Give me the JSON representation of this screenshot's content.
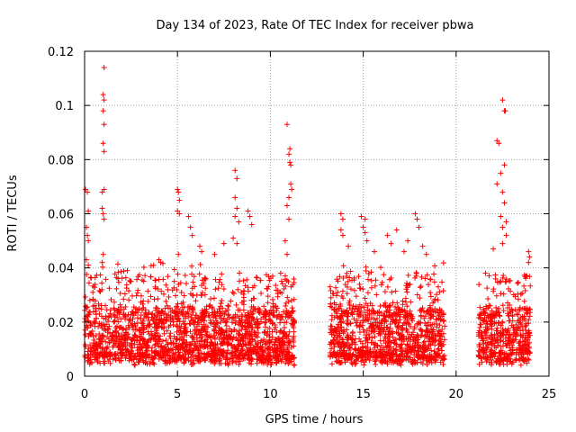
{
  "chart_data": {
    "type": "scatter",
    "title": "Day 134 of 2023, Rate Of TEC Index for receiver pbwa",
    "xlabel": "GPS time / hours",
    "ylabel": "ROTI / TECUs",
    "xlim": [
      0,
      25
    ],
    "ylim": [
      0,
      0.12
    ],
    "x_ticks": [
      0,
      5,
      10,
      15,
      20,
      25
    ],
    "x_tick_labels": [
      "0",
      "5",
      "10",
      "15",
      "20",
      "25"
    ],
    "y_ticks": [
      0,
      0.02,
      0.04,
      0.06,
      0.08,
      0.1,
      0.12
    ],
    "y_tick_labels": [
      "0",
      "0.02",
      "0.04",
      "0.06",
      "0.08",
      "0.1",
      "0.12"
    ],
    "grid": true,
    "marker": "+",
    "color": "#ff0000",
    "series": [
      {
        "data_segments": [
          {
            "x_start": 0.0,
            "x_end": 11.3,
            "baseline_range": [
              0.004,
              0.03
            ]
          },
          {
            "x_start": 13.2,
            "x_end": 19.4,
            "baseline_range": [
              0.004,
              0.03
            ]
          },
          {
            "x_start": 21.2,
            "x_end": 24.0,
            "baseline_range": [
              0.004,
              0.03
            ]
          }
        ],
        "notable_points": [
          {
            "x": 0.05,
            "y": 0.069
          },
          {
            "x": 0.15,
            "y": 0.068
          },
          {
            "x": 0.2,
            "y": 0.061
          },
          {
            "x": 0.1,
            "y": 0.055
          },
          {
            "x": 0.15,
            "y": 0.052
          },
          {
            "x": 0.2,
            "y": 0.05
          },
          {
            "x": 0.1,
            "y": 0.043
          },
          {
            "x": 0.2,
            "y": 0.041
          },
          {
            "x": 1.05,
            "y": 0.114
          },
          {
            "x": 1.0,
            "y": 0.104
          },
          {
            "x": 1.05,
            "y": 0.102
          },
          {
            "x": 1.0,
            "y": 0.098
          },
          {
            "x": 1.05,
            "y": 0.093
          },
          {
            "x": 1.0,
            "y": 0.086
          },
          {
            "x": 1.05,
            "y": 0.083
          },
          {
            "x": 0.95,
            "y": 0.068
          },
          {
            "x": 1.05,
            "y": 0.069
          },
          {
            "x": 0.95,
            "y": 0.062
          },
          {
            "x": 1.0,
            "y": 0.06
          },
          {
            "x": 1.05,
            "y": 0.058
          },
          {
            "x": 1.0,
            "y": 0.045
          },
          {
            "x": 0.95,
            "y": 0.042
          },
          {
            "x": 2.3,
            "y": 0.039
          },
          {
            "x": 2.5,
            "y": 0.035
          },
          {
            "x": 4.0,
            "y": 0.043
          },
          {
            "x": 4.1,
            "y": 0.042
          },
          {
            "x": 5.0,
            "y": 0.069
          },
          {
            "x": 5.05,
            "y": 0.068
          },
          {
            "x": 5.1,
            "y": 0.065
          },
          {
            "x": 5.0,
            "y": 0.061
          },
          {
            "x": 5.1,
            "y": 0.06
          },
          {
            "x": 5.05,
            "y": 0.045
          },
          {
            "x": 5.6,
            "y": 0.059
          },
          {
            "x": 5.7,
            "y": 0.055
          },
          {
            "x": 5.8,
            "y": 0.052
          },
          {
            "x": 6.2,
            "y": 0.048
          },
          {
            "x": 6.3,
            "y": 0.046
          },
          {
            "x": 7.0,
            "y": 0.045
          },
          {
            "x": 7.5,
            "y": 0.049
          },
          {
            "x": 8.1,
            "y": 0.076
          },
          {
            "x": 8.2,
            "y": 0.073
          },
          {
            "x": 8.1,
            "y": 0.066
          },
          {
            "x": 8.2,
            "y": 0.062
          },
          {
            "x": 8.1,
            "y": 0.059
          },
          {
            "x": 8.3,
            "y": 0.057
          },
          {
            "x": 8.0,
            "y": 0.051
          },
          {
            "x": 8.2,
            "y": 0.049
          },
          {
            "x": 8.8,
            "y": 0.061
          },
          {
            "x": 8.9,
            "y": 0.059
          },
          {
            "x": 9.0,
            "y": 0.056
          },
          {
            "x": 10.9,
            "y": 0.093
          },
          {
            "x": 11.05,
            "y": 0.084
          },
          {
            "x": 11.0,
            "y": 0.082
          },
          {
            "x": 11.05,
            "y": 0.079
          },
          {
            "x": 11.1,
            "y": 0.078
          },
          {
            "x": 11.1,
            "y": 0.071
          },
          {
            "x": 11.15,
            "y": 0.069
          },
          {
            "x": 11.0,
            "y": 0.066
          },
          {
            "x": 10.9,
            "y": 0.063
          },
          {
            "x": 11.0,
            "y": 0.058
          },
          {
            "x": 10.8,
            "y": 0.05
          },
          {
            "x": 10.9,
            "y": 0.045
          },
          {
            "x": 13.8,
            "y": 0.06
          },
          {
            "x": 13.9,
            "y": 0.058
          },
          {
            "x": 13.8,
            "y": 0.054
          },
          {
            "x": 13.9,
            "y": 0.052
          },
          {
            "x": 14.2,
            "y": 0.048
          },
          {
            "x": 14.9,
            "y": 0.059
          },
          {
            "x": 15.1,
            "y": 0.058
          },
          {
            "x": 15.0,
            "y": 0.055
          },
          {
            "x": 15.1,
            "y": 0.053
          },
          {
            "x": 15.2,
            "y": 0.05
          },
          {
            "x": 15.6,
            "y": 0.046
          },
          {
            "x": 16.3,
            "y": 0.052
          },
          {
            "x": 16.5,
            "y": 0.049
          },
          {
            "x": 16.8,
            "y": 0.054
          },
          {
            "x": 17.2,
            "y": 0.046
          },
          {
            "x": 17.4,
            "y": 0.05
          },
          {
            "x": 17.8,
            "y": 0.06
          },
          {
            "x": 17.9,
            "y": 0.058
          },
          {
            "x": 18.0,
            "y": 0.055
          },
          {
            "x": 18.2,
            "y": 0.048
          },
          {
            "x": 18.4,
            "y": 0.045
          },
          {
            "x": 22.5,
            "y": 0.102
          },
          {
            "x": 22.6,
            "y": 0.098
          },
          {
            "x": 22.65,
            "y": 0.098
          },
          {
            "x": 22.2,
            "y": 0.087
          },
          {
            "x": 22.3,
            "y": 0.086
          },
          {
            "x": 22.6,
            "y": 0.078
          },
          {
            "x": 22.4,
            "y": 0.075
          },
          {
            "x": 22.2,
            "y": 0.071
          },
          {
            "x": 22.5,
            "y": 0.068
          },
          {
            "x": 22.6,
            "y": 0.064
          },
          {
            "x": 22.4,
            "y": 0.059
          },
          {
            "x": 22.7,
            "y": 0.057
          },
          {
            "x": 22.5,
            "y": 0.055
          },
          {
            "x": 22.7,
            "y": 0.052
          },
          {
            "x": 22.5,
            "y": 0.049
          },
          {
            "x": 22.0,
            "y": 0.047
          },
          {
            "x": 23.9,
            "y": 0.046
          },
          {
            "x": 23.95,
            "y": 0.044
          },
          {
            "x": 23.9,
            "y": 0.042
          }
        ]
      }
    ]
  }
}
